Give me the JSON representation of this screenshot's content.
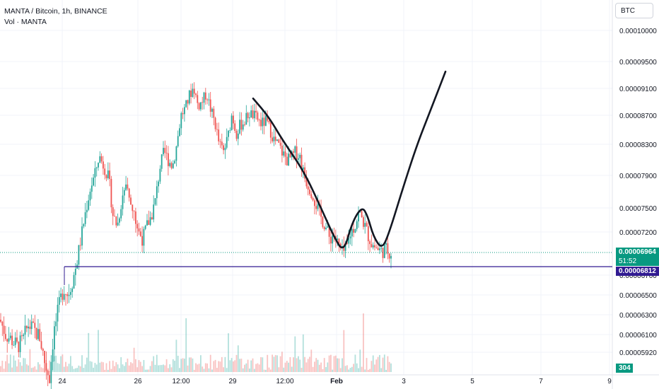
{
  "legend": {
    "line1": "MANTA / Bitcoin, 1h, BINANCE",
    "line2": "Vol · MANTA"
  },
  "currency_button": "BTC",
  "price_tags": {
    "last_price": "0.00006964",
    "countdown": "51:52",
    "level": "0.00006812",
    "volume": "304"
  },
  "colors": {
    "up": "#26a69a",
    "down": "#ef5350",
    "level_line": "#311b92",
    "last_line": "#089981",
    "drawing": "#131722"
  },
  "chart_data": {
    "type": "candlestick",
    "symbol": "MANTA / Bitcoin",
    "interval": "1h",
    "exchange": "BINANCE",
    "y_ticks": [
      "0.00010000",
      "0.00009500",
      "0.00009100",
      "0.00008700",
      "0.00008300",
      "0.00007900",
      "0.00007500",
      "0.00007200",
      "0.00006700",
      "0.00006500",
      "0.00006300",
      "0.00006100",
      "0.00005920"
    ],
    "x_ticks": [
      "24",
      "26",
      "12:00",
      "29",
      "12:00",
      "Feb",
      "3",
      "5",
      "7",
      "9"
    ],
    "last_price": 6.964e-05,
    "horizontal_level": 6.812e-05,
    "price_path": [
      [
        0,
        6.25e-05
      ],
      [
        8,
        6.1e-05
      ],
      [
        16,
        6.05e-05
      ],
      [
        24,
        5.98e-05
      ],
      [
        32,
        6.03e-05
      ],
      [
        40,
        6.2e-05
      ],
      [
        48,
        6.14e-05
      ],
      [
        56,
        6.08e-05
      ],
      [
        64,
        5.8e-05
      ],
      [
        70,
        5.68e-05
      ],
      [
        76,
        6.12e-05
      ],
      [
        84,
        6.4e-05
      ],
      [
        90,
        6.58e-05
      ],
      [
        96,
        6.5e-05
      ],
      [
        104,
        6.68e-05
      ],
      [
        110,
        6.92e-05
      ],
      [
        116,
        7.2e-05
      ],
      [
        122,
        7.5e-05
      ],
      [
        128,
        7.75e-05
      ],
      [
        134,
        7.9e-05
      ],
      [
        140,
        8.15e-05
      ],
      [
        148,
        8e-05
      ],
      [
        154,
        7.85e-05
      ],
      [
        160,
        7.4e-05
      ],
      [
        166,
        7.28e-05
      ],
      [
        172,
        7.6e-05
      ],
      [
        178,
        7.8e-05
      ],
      [
        184,
        7.52e-05
      ],
      [
        190,
        7.4e-05
      ],
      [
        196,
        7.2e-05
      ],
      [
        202,
        7.12e-05
      ],
      [
        208,
        7.28e-05
      ],
      [
        214,
        7.4e-05
      ],
      [
        220,
        7.6e-05
      ],
      [
        226,
        8e-05
      ],
      [
        232,
        8.2e-05
      ],
      [
        238,
        8.1e-05
      ],
      [
        244,
        8.02e-05
      ],
      [
        250,
        8.3e-05
      ],
      [
        256,
        8.7e-05
      ],
      [
        262,
        8.8e-05
      ],
      [
        268,
        9e-05
      ],
      [
        274,
        9.12e-05
      ],
      [
        280,
        8.84e-05
      ],
      [
        286,
        8.9e-05
      ],
      [
        292,
        9.03e-05
      ],
      [
        298,
        8.78e-05
      ],
      [
        304,
        8.6e-05
      ],
      [
        310,
        8.3e-05
      ],
      [
        316,
        8.2e-05
      ],
      [
        322,
        8.38e-05
      ],
      [
        328,
        8.72e-05
      ],
      [
        334,
        8.45e-05
      ],
      [
        340,
        8.57e-05
      ],
      [
        346,
        8.62e-05
      ],
      [
        352,
        8.73e-05
      ],
      [
        358,
        8.7e-05
      ],
      [
        364,
        8.65e-05
      ],
      [
        370,
        8.58e-05
      ],
      [
        376,
        8.62e-05
      ],
      [
        382,
        8.5e-05
      ],
      [
        388,
        8.35e-05
      ],
      [
        394,
        8.28e-05
      ],
      [
        400,
        8.18e-05
      ],
      [
        406,
        8.1e-05
      ],
      [
        412,
        8.12e-05
      ],
      [
        418,
        8.2e-05
      ],
      [
        424,
        8.15e-05
      ],
      [
        430,
        7.9e-05
      ],
      [
        436,
        7.78e-05
      ],
      [
        442,
        7.68e-05
      ],
      [
        448,
        7.52e-05
      ],
      [
        454,
        7.38e-05
      ],
      [
        460,
        7.28e-05
      ],
      [
        466,
        7.12e-05
      ],
      [
        472,
        7.18e-05
      ],
      [
        478,
        7.05e-05
      ],
      [
        484,
        6.95e-05
      ],
      [
        490,
        7e-05
      ],
      [
        496,
        7.2e-05
      ],
      [
        502,
        7.28e-05
      ],
      [
        508,
        7.45e-05
      ],
      [
        514,
        7.32e-05
      ],
      [
        520,
        7.18e-05
      ],
      [
        526,
        7.06e-05
      ],
      [
        532,
        7.02e-05
      ],
      [
        538,
        6.98e-05
      ],
      [
        544,
        7e-05
      ],
      [
        550,
        6.98e-05
      ],
      [
        555,
        6.96e-05
      ]
    ],
    "drawn_path": [
      [
        358,
        8.95e-05
      ],
      [
        380,
        8.68e-05
      ],
      [
        400,
        8.35e-05
      ],
      [
        430,
        7.95e-05
      ],
      [
        455,
        7.48e-05
      ],
      [
        472,
        7.15e-05
      ],
      [
        486,
        6.96e-05
      ],
      [
        498,
        7.32e-05
      ],
      [
        512,
        7.52e-05
      ],
      [
        520,
        7.4e-05
      ],
      [
        528,
        7.15e-05
      ],
      [
        540,
        7e-05
      ],
      [
        550,
        7.18e-05
      ],
      [
        570,
        7.75e-05
      ],
      [
        590,
        8.3e-05
      ],
      [
        608,
        8.75e-05
      ],
      [
        630,
        9.35e-05
      ]
    ]
  }
}
